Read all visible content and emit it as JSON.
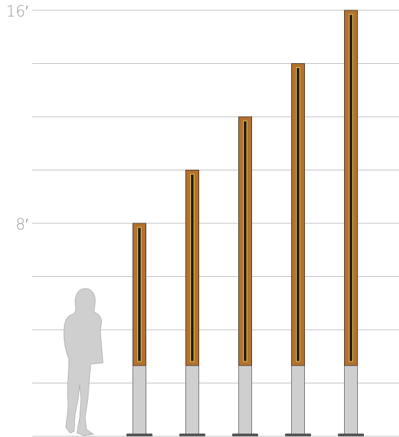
{
  "chart_data": {
    "type": "bar",
    "categories": [
      null,
      null,
      null,
      null,
      null
    ],
    "values": [
      8,
      10,
      12,
      14,
      16
    ],
    "color": "#b3722f",
    "ylim": [
      0,
      16
    ],
    "yticks": [
      {
        "value": 8,
        "label": "8′"
      },
      {
        "value": 16,
        "label": "16′"
      }
    ],
    "gridlines": [
      0,
      2,
      4,
      6,
      8,
      10,
      12,
      14,
      16
    ],
    "grid": true
  }
}
